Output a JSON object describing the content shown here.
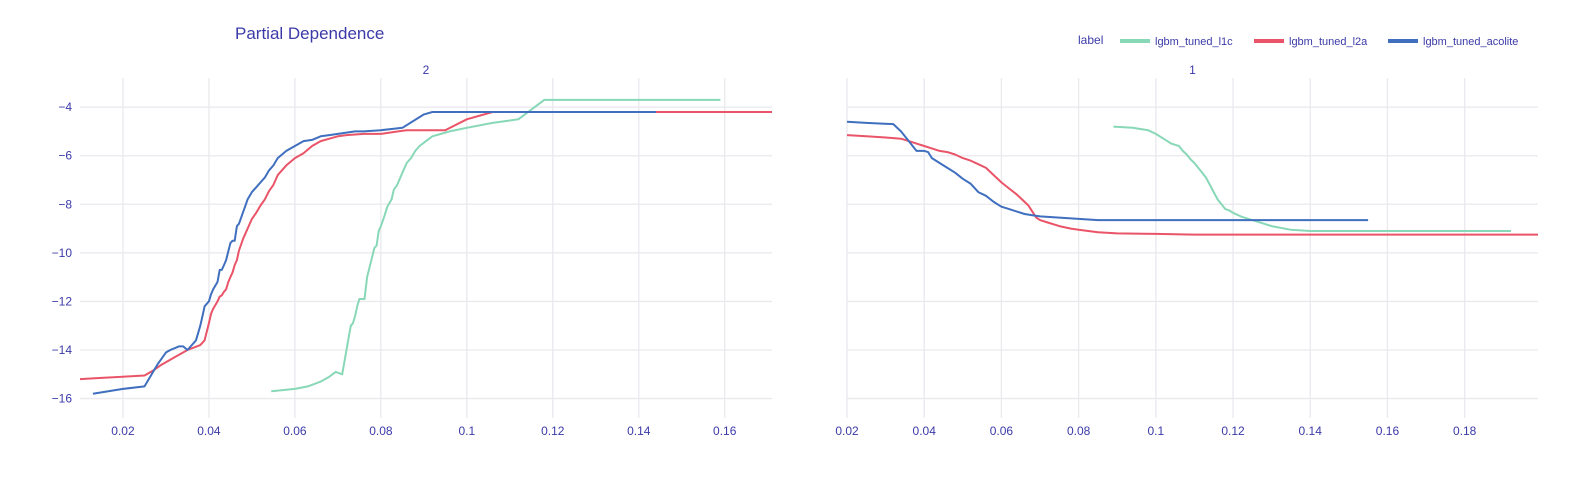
{
  "chart_data": {
    "type": "line",
    "title": "Partial Dependence",
    "legend": {
      "title": "label",
      "position": "top-right",
      "entries": [
        {
          "name": "lgbm_tuned_l1c",
          "color": "#88d8b8"
        },
        {
          "name": "lgbm_tuned_l2a",
          "color": "#ea5468"
        },
        {
          "name": "lgbm_tuned_acolite",
          "color": "#3f6fbe"
        }
      ]
    },
    "grid": true,
    "ylim": [
      -16.8,
      -2.8
    ],
    "yticks": [
      -4,
      -6,
      -8,
      -10,
      -12,
      -14,
      -16
    ],
    "ytick_labels": [
      "−4",
      "−6",
      "−8",
      "−10",
      "−12",
      "−14",
      "−16"
    ],
    "facets": [
      {
        "title": "2",
        "xlim": [
          0.01,
          0.171
        ],
        "xticks": [
          0.02,
          0.04,
          0.06,
          0.08,
          0.1,
          0.12,
          0.14,
          0.16
        ],
        "xtick_labels": [
          "0.02",
          "0.04",
          "0.06",
          "0.08",
          "0.1",
          "0.12",
          "0.14",
          "0.16"
        ],
        "series": [
          {
            "name": "lgbm_tuned_l1c",
            "x": [
              0.0545,
              0.06,
              0.063,
              0.066,
              0.068,
              0.0695,
              0.071,
              0.0725,
              0.073,
              0.0735,
              0.074,
              0.0745,
              0.075,
              0.0762,
              0.0768,
              0.0775,
              0.0785,
              0.079,
              0.0795,
              0.08,
              0.0808,
              0.0815,
              0.0825,
              0.083,
              0.0838,
              0.085,
              0.086,
              0.087,
              0.088,
              0.089,
              0.0905,
              0.092,
              0.094,
              0.096,
              0.1,
              0.106,
              0.112,
              0.118,
              0.13,
              0.159
            ],
            "y": [
              -15.7,
              -15.6,
              -15.5,
              -15.3,
              -15.1,
              -14.9,
              -15.0,
              -13.5,
              -13.0,
              -12.9,
              -12.6,
              -12.2,
              -11.9,
              -11.9,
              -11.0,
              -10.5,
              -9.8,
              -9.7,
              -9.1,
              -8.9,
              -8.5,
              -8.1,
              -7.8,
              -7.4,
              -7.2,
              -6.7,
              -6.3,
              -6.1,
              -5.8,
              -5.6,
              -5.4,
              -5.2,
              -5.1,
              -5.0,
              -4.85,
              -4.65,
              -4.5,
              -3.7,
              -3.7,
              -3.7
            ]
          },
          {
            "name": "lgbm_tuned_l2a",
            "x": [
              0.01,
              0.015,
              0.02,
              0.025,
              0.027,
              0.029,
              0.032,
              0.035,
              0.038,
              0.039,
              0.04,
              0.0405,
              0.041,
              0.042,
              0.0425,
              0.043,
              0.0435,
              0.044,
              0.0445,
              0.045,
              0.0455,
              0.046,
              0.0465,
              0.047,
              0.048,
              0.049,
              0.05,
              0.051,
              0.052,
              0.053,
              0.054,
              0.055,
              0.056,
              0.058,
              0.06,
              0.062,
              0.064,
              0.066,
              0.068,
              0.07,
              0.072,
              0.076,
              0.08,
              0.082,
              0.084,
              0.086,
              0.088,
              0.095,
              0.1,
              0.106,
              0.12,
              0.14,
              0.171
            ],
            "y": [
              -15.2,
              -15.15,
              -15.1,
              -15.05,
              -14.85,
              -14.6,
              -14.3,
              -14.0,
              -13.8,
              -13.6,
              -12.9,
              -12.5,
              -12.3,
              -12.0,
              -11.8,
              -11.75,
              -11.6,
              -11.5,
              -11.2,
              -11.0,
              -10.8,
              -10.5,
              -10.3,
              -9.9,
              -9.4,
              -9.0,
              -8.6,
              -8.35,
              -8.05,
              -7.8,
              -7.45,
              -7.2,
              -6.8,
              -6.4,
              -6.1,
              -5.9,
              -5.6,
              -5.4,
              -5.3,
              -5.2,
              -5.15,
              -5.1,
              -5.1,
              -5.05,
              -5.0,
              -4.95,
              -4.95,
              -4.95,
              -4.5,
              -4.2,
              -4.2,
              -4.2,
              -4.2
            ]
          },
          {
            "name": "lgbm_tuned_acolite",
            "x": [
              0.013,
              0.02,
              0.025,
              0.026,
              0.028,
              0.03,
              0.031,
              0.033,
              0.034,
              0.035,
              0.036,
              0.037,
              0.038,
              0.0385,
              0.039,
              0.04,
              0.0405,
              0.041,
              0.042,
              0.0425,
              0.043,
              0.0435,
              0.044,
              0.045,
              0.0455,
              0.046,
              0.0465,
              0.047,
              0.048,
              0.049,
              0.05,
              0.051,
              0.052,
              0.053,
              0.054,
              0.055,
              0.056,
              0.058,
              0.06,
              0.062,
              0.064,
              0.066,
              0.068,
              0.07,
              0.072,
              0.074,
              0.076,
              0.08,
              0.085,
              0.09,
              0.092,
              0.1,
              0.12,
              0.144
            ],
            "y": [
              -15.8,
              -15.6,
              -15.5,
              -15.2,
              -14.6,
              -14.1,
              -14.0,
              -13.85,
              -13.85,
              -14.0,
              -13.8,
              -13.6,
              -13.0,
              -12.6,
              -12.2,
              -12.0,
              -11.7,
              -11.5,
              -11.2,
              -10.7,
              -10.7,
              -10.5,
              -10.3,
              -9.6,
              -9.5,
              -9.5,
              -8.9,
              -8.8,
              -8.3,
              -7.8,
              -7.5,
              -7.3,
              -7.1,
              -6.9,
              -6.6,
              -6.4,
              -6.1,
              -5.8,
              -5.6,
              -5.4,
              -5.35,
              -5.2,
              -5.15,
              -5.1,
              -5.05,
              -5.0,
              -5.0,
              -4.95,
              -4.85,
              -4.3,
              -4.2,
              -4.2,
              -4.2,
              -4.2
            ]
          }
        ]
      },
      {
        "title": "1",
        "xlim": [
          0.02,
          0.199
        ],
        "xticks": [
          0.02,
          0.04,
          0.06,
          0.08,
          0.1,
          0.12,
          0.14,
          0.16,
          0.18
        ],
        "xtick_labels": [
          "0.02",
          "0.04",
          "0.06",
          "0.08",
          "0.1",
          "0.12",
          "0.14",
          "0.16",
          "0.18"
        ],
        "series": [
          {
            "name": "lgbm_tuned_l1c",
            "x": [
              0.089,
              0.094,
              0.098,
              0.1,
              0.102,
              0.104,
              0.105,
              0.106,
              0.107,
              0.108,
              0.109,
              0.11,
              0.111,
              0.112,
              0.113,
              0.114,
              0.115,
              0.116,
              0.117,
              0.118,
              0.119,
              0.12,
              0.122,
              0.124,
              0.126,
              0.128,
              0.13,
              0.135,
              0.14,
              0.15,
              0.17,
              0.192
            ],
            "y": [
              -4.8,
              -4.85,
              -4.95,
              -5.1,
              -5.3,
              -5.5,
              -5.55,
              -5.6,
              -5.8,
              -5.95,
              -6.15,
              -6.3,
              -6.5,
              -6.7,
              -6.9,
              -7.2,
              -7.5,
              -7.8,
              -8.0,
              -8.2,
              -8.25,
              -8.35,
              -8.5,
              -8.6,
              -8.7,
              -8.8,
              -8.9,
              -9.05,
              -9.1,
              -9.1,
              -9.1,
              -9.1
            ]
          },
          {
            "name": "lgbm_tuned_l2a",
            "x": [
              0.02,
              0.025,
              0.03,
              0.034,
              0.036,
              0.038,
              0.04,
              0.042,
              0.044,
              0.046,
              0.048,
              0.05,
              0.052,
              0.054,
              0.056,
              0.058,
              0.06,
              0.062,
              0.064,
              0.066,
              0.067,
              0.068,
              0.069,
              0.07,
              0.072,
              0.075,
              0.078,
              0.08,
              0.085,
              0.09,
              0.1,
              0.11,
              0.13,
              0.16,
              0.199
            ],
            "y": [
              -5.15,
              -5.2,
              -5.25,
              -5.3,
              -5.4,
              -5.5,
              -5.6,
              -5.7,
              -5.8,
              -5.85,
              -5.95,
              -6.1,
              -6.2,
              -6.35,
              -6.5,
              -6.8,
              -7.1,
              -7.35,
              -7.6,
              -7.9,
              -8.05,
              -8.3,
              -8.55,
              -8.65,
              -8.75,
              -8.9,
              -9.0,
              -9.05,
              -9.15,
              -9.2,
              -9.22,
              -9.25,
              -9.25,
              -9.25,
              -9.25
            ]
          },
          {
            "name": "lgbm_tuned_acolite",
            "x": [
              0.02,
              0.025,
              0.032,
              0.034,
              0.036,
              0.038,
              0.04,
              0.041,
              0.042,
              0.044,
              0.046,
              0.048,
              0.05,
              0.052,
              0.054,
              0.056,
              0.058,
              0.06,
              0.062,
              0.064,
              0.066,
              0.068,
              0.07,
              0.075,
              0.08,
              0.085,
              0.1,
              0.12,
              0.14,
              0.155
            ],
            "y": [
              -4.6,
              -4.65,
              -4.7,
              -5.0,
              -5.4,
              -5.8,
              -5.8,
              -5.85,
              -6.1,
              -6.3,
              -6.5,
              -6.7,
              -6.95,
              -7.15,
              -7.5,
              -7.65,
              -7.9,
              -8.1,
              -8.2,
              -8.3,
              -8.4,
              -8.45,
              -8.5,
              -8.55,
              -8.6,
              -8.65,
              -8.65,
              -8.65,
              -8.65,
              -8.65
            ]
          }
        ]
      }
    ]
  }
}
